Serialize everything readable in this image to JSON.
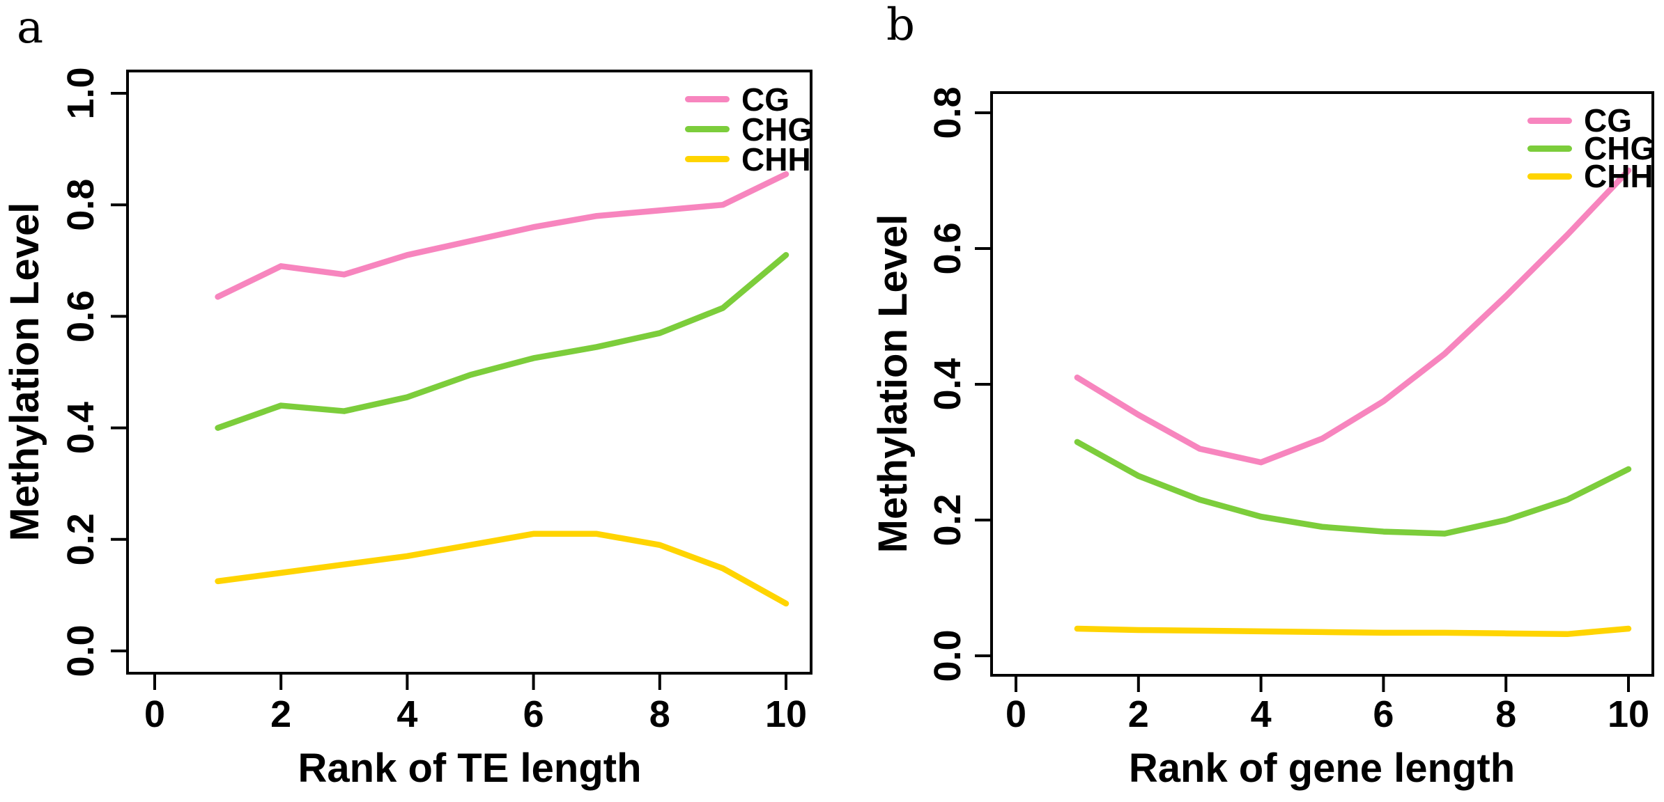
{
  "figure": {
    "panels": [
      {
        "label": "a",
        "ylabel": "Methylation Level",
        "xlabel": "Rank of TE length",
        "legend": [
          {
            "label": "CG",
            "color": "#F785BE"
          },
          {
            "label": "CHG",
            "color": "#7CCD3B"
          },
          {
            "label": "CHH",
            "color": "#FFD400"
          }
        ],
        "chart_data": {
          "type": "line",
          "title": "",
          "xlabel": "Rank of TE length",
          "ylabel": "Methylation Level",
          "x": [
            1,
            2,
            3,
            4,
            5,
            6,
            7,
            8,
            9,
            10
          ],
          "x_ticks": [
            "0",
            "2",
            "4",
            "6",
            "8",
            "10"
          ],
          "y_ticks": [
            "0.0",
            "0.2",
            "0.4",
            "0.6",
            "0.8",
            "1.0"
          ],
          "xlim": [
            -0.4,
            10.4
          ],
          "ylim": [
            0.0,
            1.0
          ],
          "grid": "off",
          "legend_position": "top-right-inside",
          "series": [
            {
              "name": "CG",
              "color": "#F785BE",
              "values": [
                0.635,
                0.69,
                0.675,
                0.71,
                0.735,
                0.76,
                0.78,
                0.79,
                0.8,
                0.855
              ]
            },
            {
              "name": "CHG",
              "color": "#7CCD3B",
              "values": [
                0.4,
                0.44,
                0.43,
                0.455,
                0.495,
                0.525,
                0.545,
                0.57,
                0.615,
                0.71
              ]
            },
            {
              "name": "CHH",
              "color": "#FFD400",
              "values": [
                0.125,
                0.14,
                0.155,
                0.17,
                0.19,
                0.21,
                0.21,
                0.19,
                0.148,
                0.085
              ]
            }
          ]
        }
      },
      {
        "label": "b",
        "ylabel": "Methylation Level",
        "xlabel": "Rank of gene length",
        "legend": [
          {
            "label": "CG",
            "color": "#F785BE"
          },
          {
            "label": "CHG",
            "color": "#7CCD3B"
          },
          {
            "label": "CHH",
            "color": "#FFD400"
          }
        ],
        "chart_data": {
          "type": "line",
          "title": "",
          "xlabel": "Rank of gene length",
          "ylabel": "Methylation Level",
          "x": [
            1,
            2,
            3,
            4,
            5,
            6,
            7,
            8,
            9,
            10
          ],
          "x_ticks": [
            "0",
            "2",
            "4",
            "6",
            "8",
            "10"
          ],
          "y_ticks": [
            "0.0",
            "0.2",
            "0.4",
            "0.6",
            "0.8"
          ],
          "xlim": [
            -0.4,
            10.4
          ],
          "ylim": [
            0.0,
            0.8
          ],
          "grid": "off",
          "legend_position": "top-right-inside",
          "series": [
            {
              "name": "CG",
              "color": "#F785BE",
              "values": [
                0.41,
                0.355,
                0.305,
                0.285,
                0.32,
                0.375,
                0.445,
                0.53,
                0.62,
                0.715
              ]
            },
            {
              "name": "CHG",
              "color": "#7CCD3B",
              "values": [
                0.315,
                0.265,
                0.23,
                0.205,
                0.19,
                0.183,
                0.18,
                0.2,
                0.23,
                0.275
              ]
            },
            {
              "name": "CHH",
              "color": "#FFD400",
              "values": [
                0.04,
                0.038,
                0.037,
                0.036,
                0.035,
                0.034,
                0.034,
                0.033,
                0.032,
                0.04
              ]
            }
          ]
        }
      }
    ]
  }
}
